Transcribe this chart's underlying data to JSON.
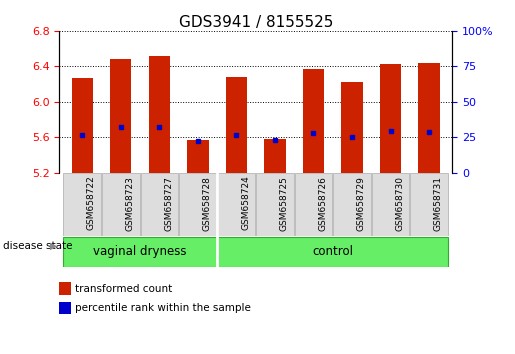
{
  "title": "GDS3941 / 8155525",
  "samples": [
    "GSM658722",
    "GSM658723",
    "GSM658727",
    "GSM658728",
    "GSM658724",
    "GSM658725",
    "GSM658726",
    "GSM658729",
    "GSM658730",
    "GSM658731"
  ],
  "groups": [
    "vaginal dryness",
    "vaginal dryness",
    "vaginal dryness",
    "vaginal dryness",
    "control",
    "control",
    "control",
    "control",
    "control",
    "control"
  ],
  "bar_tops": [
    6.27,
    6.49,
    6.52,
    5.57,
    6.28,
    5.58,
    6.37,
    6.22,
    6.43,
    6.44
  ],
  "bar_bottom": 5.2,
  "blue_markers": [
    5.63,
    5.72,
    5.72,
    5.56,
    5.62,
    5.57,
    5.645,
    5.6,
    5.67,
    5.66
  ],
  "ylim_left": [
    5.2,
    6.8
  ],
  "ylim_right": [
    0,
    100
  ],
  "yticks_left": [
    5.2,
    5.6,
    6.0,
    6.4,
    6.8
  ],
  "yticks_right": [
    0,
    25,
    50,
    75,
    100
  ],
  "ytick_labels_right": [
    "0",
    "25",
    "50",
    "75",
    "100%"
  ],
  "bar_color": "#CC2200",
  "marker_color": "#0000CC",
  "label_transformed": "transformed count",
  "label_percentile": "percentile rank within the sample",
  "disease_state_label": "disease state",
  "group_fill": "#66EE66",
  "group_edge": "#33AA33",
  "sample_bg": "#DDDDDD",
  "sample_edge": "#AAAAAA",
  "vaginal_dryness_sep": 3.5
}
